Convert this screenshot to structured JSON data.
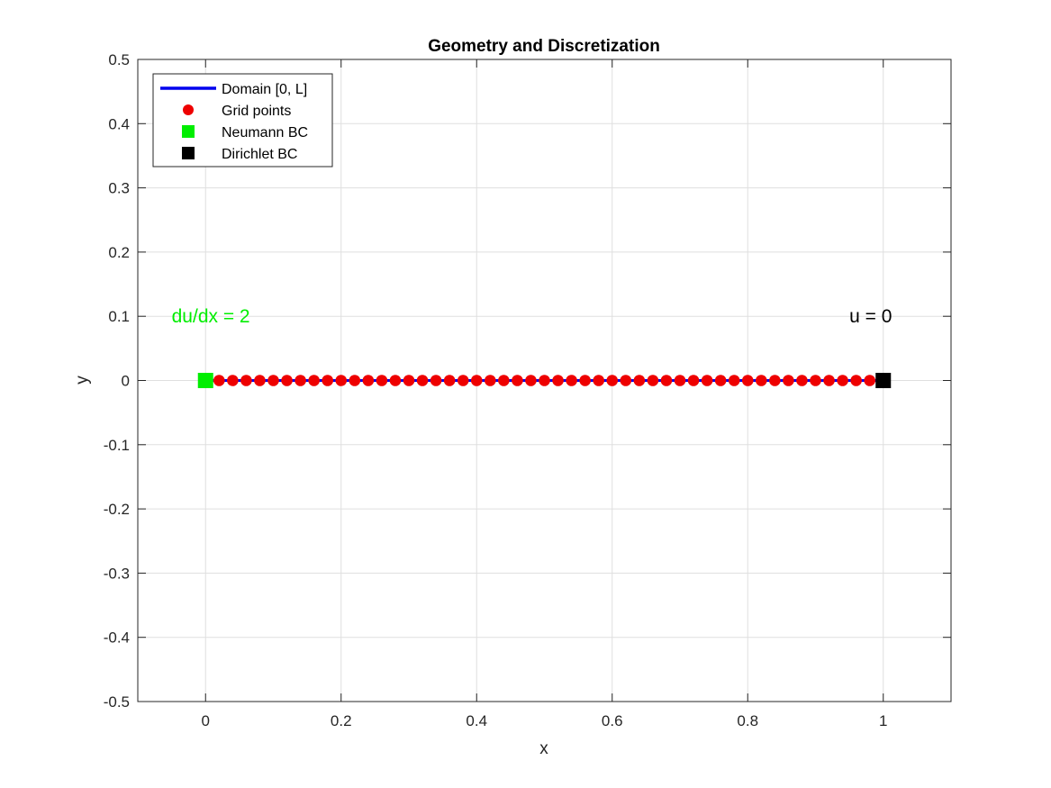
{
  "chart_data": {
    "type": "line",
    "title": "Geometry and Discretization",
    "xlabel": "x",
    "ylabel": "y",
    "xlim": [
      -0.1,
      1.1
    ],
    "ylim": [
      -0.5,
      0.5
    ],
    "grid": true,
    "legend_position": "top-left",
    "x_ticks": [
      0,
      0.2,
      0.4,
      0.6,
      0.8,
      1
    ],
    "x_tick_labels": [
      "0",
      "0.2",
      "0.4",
      "0.6",
      "0.8",
      "1"
    ],
    "y_ticks": [
      0.5,
      0.4,
      0.3,
      0.2,
      0.1,
      0,
      -0.1,
      -0.2,
      -0.3,
      -0.4,
      -0.5
    ],
    "y_tick_labels": [
      "0.5",
      "0.4",
      "0.3",
      "0.2",
      "0.1",
      "0",
      "-0.1",
      "-0.2",
      "-0.3",
      "-0.4",
      "-0.5"
    ],
    "series": [
      {
        "name": "Domain [0, L]",
        "kind": "line",
        "color": "#0000ee",
        "x": [
          0,
          1
        ],
        "y": [
          0,
          0
        ]
      },
      {
        "name": "Grid points",
        "kind": "scatter",
        "marker": "circle",
        "color": "#ee0000",
        "x": [
          0.02,
          0.04,
          0.06,
          0.08,
          0.1,
          0.12,
          0.14,
          0.16,
          0.18,
          0.2,
          0.22,
          0.24,
          0.26,
          0.28,
          0.3,
          0.32,
          0.34,
          0.36,
          0.38,
          0.4,
          0.42,
          0.44,
          0.46,
          0.48,
          0.5,
          0.52,
          0.54,
          0.56,
          0.58,
          0.6,
          0.62,
          0.64,
          0.66,
          0.68,
          0.7,
          0.72,
          0.74,
          0.76,
          0.78,
          0.8,
          0.82,
          0.84,
          0.86,
          0.88,
          0.9,
          0.92,
          0.94,
          0.96,
          0.98
        ],
        "y": [
          0,
          0,
          0,
          0,
          0,
          0,
          0,
          0,
          0,
          0,
          0,
          0,
          0,
          0,
          0,
          0,
          0,
          0,
          0,
          0,
          0,
          0,
          0,
          0,
          0,
          0,
          0,
          0,
          0,
          0,
          0,
          0,
          0,
          0,
          0,
          0,
          0,
          0,
          0,
          0,
          0,
          0,
          0,
          0,
          0,
          0,
          0,
          0,
          0
        ]
      },
      {
        "name": "Neumann BC",
        "kind": "scatter",
        "marker": "square",
        "color": "#00ee00",
        "x": [
          0
        ],
        "y": [
          0
        ]
      },
      {
        "name": "Dirichlet BC",
        "kind": "scatter",
        "marker": "square",
        "color": "#000000",
        "x": [
          1
        ],
        "y": [
          0
        ]
      }
    ],
    "annotations": [
      {
        "text": "du/dx = 2",
        "x": -0.05,
        "y": 0.1,
        "color": "#00ee00"
      },
      {
        "text": "u = 0",
        "x": 0.95,
        "y": 0.1,
        "color": "#000000"
      }
    ]
  }
}
